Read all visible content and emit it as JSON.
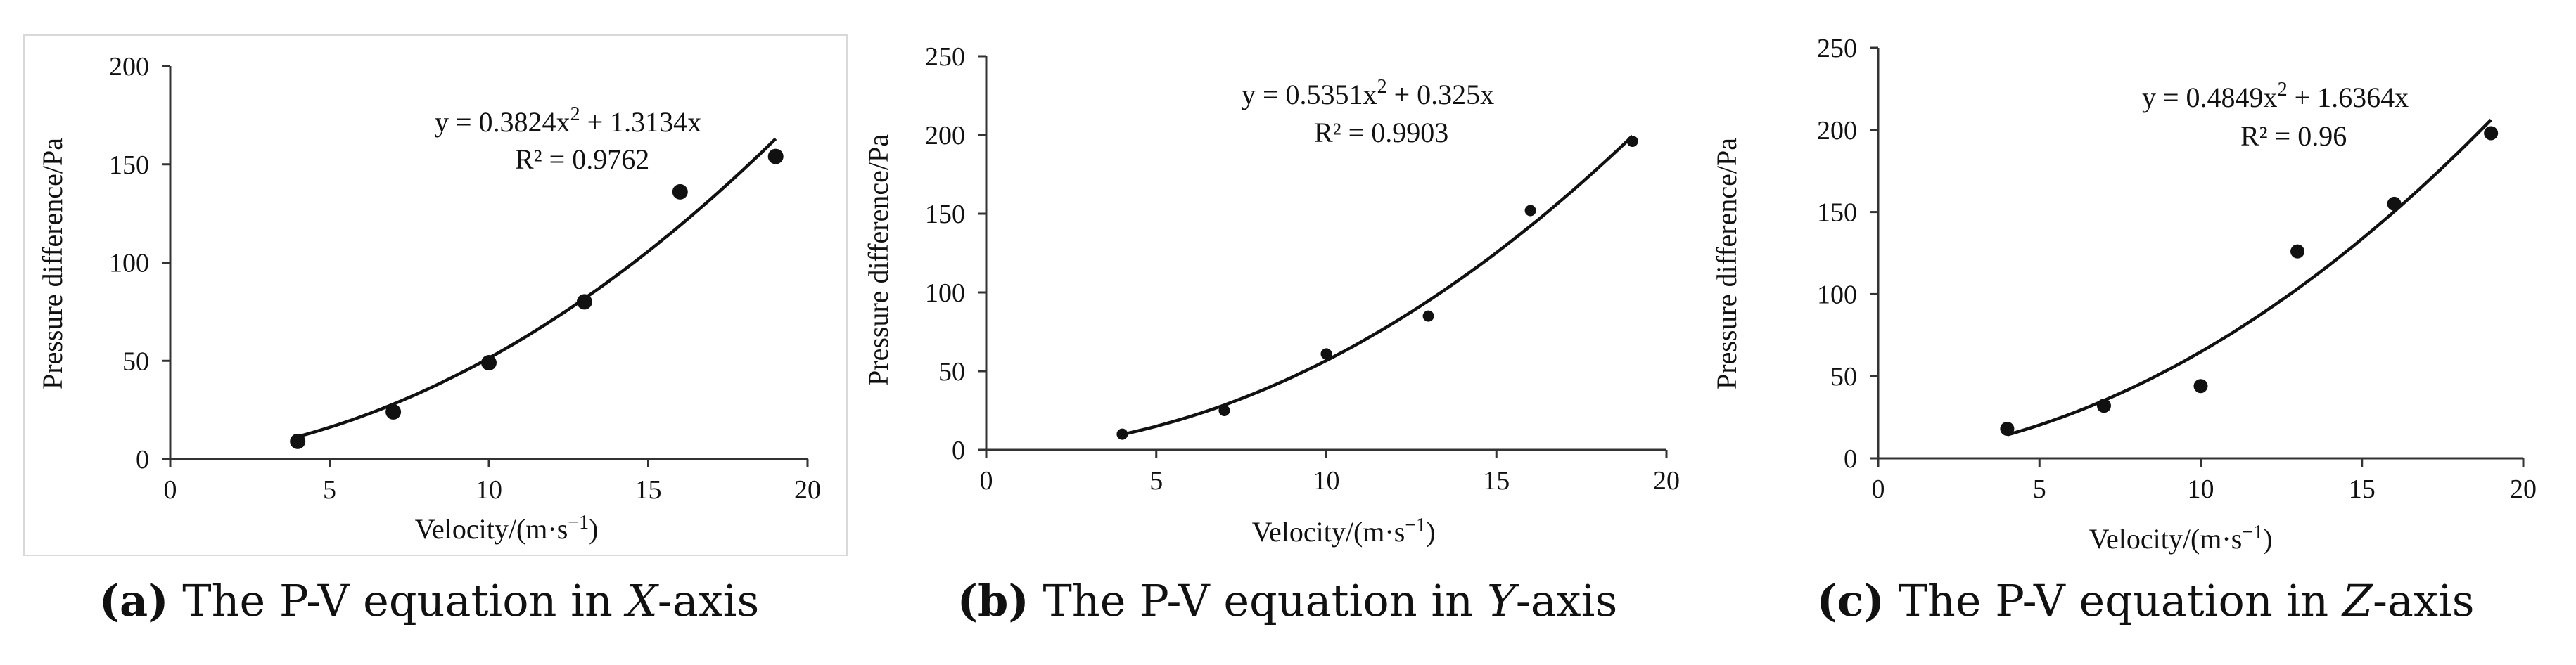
{
  "chart_data": [
    {
      "type": "scatter",
      "caption": {
        "tag": "(a)",
        "text": "The P-V equation in ",
        "axis": "X",
        "suffix": "-axis"
      },
      "xlabel": "Velocity/(m·s",
      "xlabel_sup": "−1",
      "xlabel_end": ")",
      "ylabel": "Pressure difference/Pa",
      "xlim": [
        0,
        20
      ],
      "ylim": [
        0,
        200
      ],
      "xticks": [
        0,
        5,
        10,
        15,
        20
      ],
      "yticks": [
        0,
        50,
        100,
        150,
        200
      ],
      "x": [
        4,
        7,
        10,
        13,
        16,
        19
      ],
      "y": [
        9,
        24,
        49,
        80,
        136,
        154
      ],
      "fit": {
        "a": 0.3824,
        "b": 1.3134,
        "x_range": [
          4,
          19
        ]
      },
      "equation": {
        "lhs": "y = 0.3824x",
        "sup": "2",
        "rhs": " + 1.3134x",
        "r2": "R² = 0.9762"
      }
    },
    {
      "type": "scatter",
      "caption": {
        "tag": "(b)",
        "text": "The P-V equation in ",
        "axis": "Y",
        "suffix": "-axis"
      },
      "xlabel": "Velocity/(m·s",
      "xlabel_sup": "−1",
      "xlabel_end": ")",
      "ylabel": "Pressure difference/Pa",
      "xlim": [
        0,
        20
      ],
      "ylim": [
        0,
        250
      ],
      "xticks": [
        0,
        5,
        10,
        15,
        20
      ],
      "yticks": [
        0,
        50,
        100,
        150,
        200,
        250
      ],
      "x": [
        4,
        7,
        10,
        13,
        16,
        19
      ],
      "y": [
        10,
        25,
        61,
        85,
        152,
        196
      ],
      "fit": {
        "a": 0.5351,
        "b": 0.325,
        "x_range": [
          4,
          19
        ]
      },
      "equation": {
        "lhs": "y = 0.5351x",
        "sup": "2",
        "rhs": " + 0.325x",
        "r2": "R² = 0.9903"
      }
    },
    {
      "type": "scatter",
      "caption": {
        "tag": "(c)",
        "text": "The P-V equation in ",
        "axis": "Z",
        "suffix": "-axis"
      },
      "xlabel": "Velocity/(m·s",
      "xlabel_sup": "−1",
      "xlabel_end": ")",
      "ylabel": "Pressure difference/Pa",
      "xlim": [
        0,
        20
      ],
      "ylim": [
        0,
        250
      ],
      "xticks": [
        0,
        5,
        10,
        15,
        20
      ],
      "yticks": [
        0,
        50,
        100,
        150,
        200,
        250
      ],
      "x": [
        4,
        7,
        10,
        13,
        16,
        19
      ],
      "y": [
        18,
        32,
        44,
        126,
        155,
        198
      ],
      "fit": {
        "a": 0.4849,
        "b": 1.6364,
        "x_range": [
          4,
          19
        ]
      },
      "equation": {
        "lhs": "y = 0.4849x",
        "sup": "2",
        "rhs": " + 1.6364x",
        "r2": "R² = 0.96"
      }
    }
  ]
}
